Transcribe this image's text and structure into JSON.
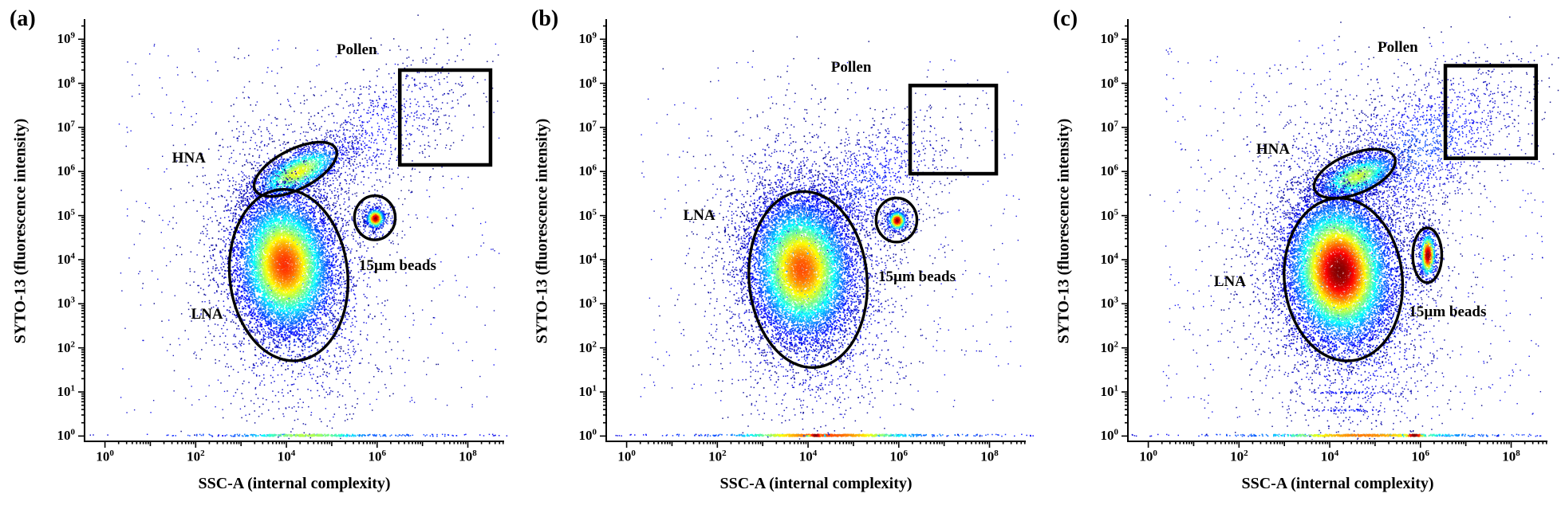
{
  "figure": {
    "background": "#ffffff",
    "panel_count": 3,
    "colormap": "jet",
    "axis_color": "#000000",
    "gate_color": "#000000"
  },
  "axes": {
    "x_label": "SSC-A (internal complexity)",
    "y_label": "SYTO-13 (fluorescence intensity)",
    "tick_base": "10",
    "x_tick_exponents": [
      0,
      2,
      4,
      6,
      8
    ],
    "y_tick_exponents": [
      0,
      1,
      2,
      3,
      4,
      5,
      6,
      7,
      8,
      9
    ],
    "x_range": [
      -0.45,
      8.8
    ],
    "y_range": [
      -0.12,
      9.42
    ],
    "scale": "log10",
    "grid": false
  },
  "chart_data": [
    {
      "panel_label": "(a)",
      "type": "scatter",
      "colormap": "jet",
      "seed": 20,
      "gates": [
        {
          "name": "Pollen",
          "shape": "rect",
          "x0": 6.5,
          "y0": 6.15,
          "x1": 8.5,
          "y1": 8.3,
          "label_x": 5.55,
          "label_y": 8.75
        },
        {
          "name": "HNA",
          "shape": "ellipse",
          "cx": 4.2,
          "cy": 6.05,
          "rx": 1.0,
          "ry": 0.45,
          "rot": 27,
          "label_x": 1.85,
          "label_y": 6.3
        },
        {
          "name": "LNA",
          "shape": "ellipse",
          "cx": 4.05,
          "cy": 3.65,
          "rx": 1.3,
          "ry": 1.95,
          "rot": 6,
          "label_x": 2.25,
          "label_y": 2.75
        },
        {
          "name": "15µm beads",
          "shape": "ellipse",
          "cx": 5.95,
          "cy": 4.95,
          "rx": 0.45,
          "ry": 0.5,
          "rot": 0,
          "label_x": 6.45,
          "label_y": 3.85
        }
      ],
      "clusters": [
        {
          "type": "uniform",
          "x0": 0.3,
          "x1": 8.7,
          "y0": 0.4,
          "y1": 9.0,
          "n": 420,
          "hot": 0.12,
          "size": 1.4
        },
        {
          "type": "gauss",
          "cx": 4.05,
          "cy": 3.8,
          "sx": 0.95,
          "sy": 1.55,
          "rot": 6,
          "n": 2600,
          "hot": 0.3,
          "size": 1.5
        },
        {
          "type": "gauss",
          "cx": 5.9,
          "cy": 6.9,
          "sx": 1.25,
          "sy": 0.6,
          "rot": 38,
          "n": 850,
          "hot": 0.13,
          "size": 1.5
        },
        {
          "type": "line",
          "cx": 4.5,
          "sx": 2.2,
          "n": 170,
          "hot": 0.25,
          "size": 1.5
        },
        {
          "type": "gauss",
          "cx": 4.25,
          "cy": 6.0,
          "sx": 0.55,
          "sy": 0.22,
          "rot": 27,
          "n": 2100,
          "hot": 0.62,
          "size": 1.5
        },
        {
          "type": "gauss",
          "cx": 3.95,
          "cy": 3.9,
          "sx": 0.52,
          "sy": 0.78,
          "rot": 6,
          "n": 8800,
          "hot": 0.83,
          "size": 1.7
        },
        {
          "type": "line",
          "cx": 4.4,
          "sx": 0.75,
          "n": 260,
          "hot": 0.55,
          "size": 1.7
        },
        {
          "type": "gauss",
          "cx": 5.95,
          "cy": 4.95,
          "sx": 0.24,
          "sy": 0.26,
          "rot": 0,
          "n": 220,
          "hot": 0.3,
          "size": 1.4
        },
        {
          "type": "gauss",
          "cx": 5.95,
          "cy": 4.95,
          "sx": 0.1,
          "sy": 0.11,
          "rot": 0,
          "n": 520,
          "hot": 1.0,
          "size": 1.7
        }
      ]
    },
    {
      "panel_label": "(b)",
      "type": "scatter",
      "colormap": "jet",
      "seed": 21,
      "gates": [
        {
          "name": "Pollen",
          "shape": "rect",
          "x0": 6.25,
          "y0": 5.95,
          "x1": 8.15,
          "y1": 7.95,
          "label_x": 4.95,
          "label_y": 8.35
        },
        {
          "name": "LNA",
          "shape": "ellipse",
          "cx": 4.0,
          "cy": 3.55,
          "rx": 1.3,
          "ry": 2.0,
          "rot": 5,
          "label_x": 1.6,
          "label_y": 5.0
        },
        {
          "name": "15µm beads",
          "shape": "ellipse",
          "cx": 5.95,
          "cy": 4.9,
          "rx": 0.45,
          "ry": 0.5,
          "rot": 0,
          "label_x": 6.4,
          "label_y": 3.6
        }
      ],
      "clusters": [
        {
          "type": "uniform",
          "x0": 0.3,
          "x1": 8.7,
          "y0": 0.4,
          "y1": 8.6,
          "n": 380,
          "hot": 0.12,
          "size": 1.4
        },
        {
          "type": "gauss",
          "cx": 3.95,
          "cy": 3.7,
          "sx": 1.0,
          "sy": 1.6,
          "rot": 5,
          "n": 2900,
          "hot": 0.28,
          "size": 1.5
        },
        {
          "type": "gauss",
          "cx": 5.2,
          "cy": 5.7,
          "sx": 1.15,
          "sy": 0.55,
          "rot": 36,
          "n": 1100,
          "hot": 0.16,
          "size": 1.5
        },
        {
          "type": "line",
          "cx": 4.6,
          "sx": 2.3,
          "n": 280,
          "hot": 0.3,
          "size": 1.5
        },
        {
          "type": "gauss",
          "cx": 3.85,
          "cy": 3.8,
          "sx": 0.55,
          "sy": 0.8,
          "rot": 5,
          "n": 9000,
          "hot": 0.8,
          "size": 1.7
        },
        {
          "type": "line",
          "cx": 4.35,
          "sx": 0.95,
          "n": 620,
          "hot": 0.8,
          "size": 1.7
        },
        {
          "type": "line",
          "cx": 4.15,
          "sx": 0.1,
          "n": 60,
          "hot": 1.0,
          "size": 1.8
        },
        {
          "type": "gauss",
          "cx": 5.95,
          "cy": 4.9,
          "sx": 0.24,
          "sy": 0.26,
          "rot": 0,
          "n": 200,
          "hot": 0.3,
          "size": 1.4
        },
        {
          "type": "gauss",
          "cx": 5.95,
          "cy": 4.9,
          "sx": 0.1,
          "sy": 0.11,
          "rot": 0,
          "n": 500,
          "hot": 1.0,
          "size": 1.7
        }
      ]
    },
    {
      "panel_label": "(c)",
      "type": "scatter",
      "colormap": "jet",
      "seed": 22,
      "gates": [
        {
          "name": "Pollen",
          "shape": "rect",
          "x0": 6.55,
          "y0": 6.3,
          "x1": 8.55,
          "y1": 8.4,
          "label_x": 5.5,
          "label_y": 8.8
        },
        {
          "name": "HNA",
          "shape": "ellipse",
          "cx": 4.55,
          "cy": 5.95,
          "rx": 0.95,
          "ry": 0.45,
          "rot": 22,
          "label_x": 2.75,
          "label_y": 6.5
        },
        {
          "name": "LNA",
          "shape": "ellipse",
          "cx": 4.3,
          "cy": 3.55,
          "rx": 1.3,
          "ry": 1.85,
          "rot": 6,
          "label_x": 1.8,
          "label_y": 3.5
        },
        {
          "name": "15µm beads",
          "shape": "ellipse",
          "cx": 6.15,
          "cy": 4.1,
          "rx": 0.32,
          "ry": 0.62,
          "rot": 0,
          "label_x": 6.6,
          "label_y": 2.8
        }
      ],
      "clusters": [
        {
          "type": "uniform",
          "x0": 0.3,
          "x1": 8.7,
          "y0": 0.4,
          "y1": 9.0,
          "n": 620,
          "hot": 0.13,
          "size": 1.4
        },
        {
          "type": "gauss",
          "cx": 4.3,
          "cy": 3.7,
          "sx": 1.05,
          "sy": 1.65,
          "rot": 6,
          "n": 3400,
          "hot": 0.3,
          "size": 1.5
        },
        {
          "type": "gauss",
          "cx": 5.9,
          "cy": 6.5,
          "sx": 1.35,
          "sy": 0.68,
          "rot": 36,
          "n": 1700,
          "hot": 0.2,
          "size": 1.5
        },
        {
          "type": "line",
          "cx": 4.8,
          "sx": 2.3,
          "n": 260,
          "hot": 0.3,
          "size": 1.5
        },
        {
          "type": "line",
          "v": 1.0,
          "cx": 4.5,
          "sx": 0.55,
          "n": 70,
          "hot": 0.15,
          "size": 1.5
        },
        {
          "type": "line",
          "v": 0.6,
          "cx": 4.4,
          "sx": 0.5,
          "n": 50,
          "hot": 0.15,
          "size": 1.5
        },
        {
          "type": "gauss",
          "cx": 4.6,
          "cy": 5.9,
          "sx": 0.5,
          "sy": 0.22,
          "rot": 22,
          "n": 2000,
          "hot": 0.58,
          "size": 1.5
        },
        {
          "type": "gauss",
          "cx": 4.2,
          "cy": 3.75,
          "sx": 0.55,
          "sy": 0.8,
          "rot": 6,
          "n": 11000,
          "hot": 1.0,
          "size": 1.7
        },
        {
          "type": "line",
          "cx": 4.7,
          "sx": 1.05,
          "n": 430,
          "hot": 0.75,
          "size": 1.7
        },
        {
          "type": "line",
          "cx": 5.85,
          "sx": 0.12,
          "n": 70,
          "hot": 1.0,
          "size": 1.8
        },
        {
          "type": "gauss",
          "cx": 6.15,
          "cy": 4.1,
          "sx": 0.18,
          "sy": 0.42,
          "rot": 0,
          "n": 220,
          "hot": 0.3,
          "size": 1.4
        },
        {
          "type": "gauss",
          "cx": 6.15,
          "cy": 4.12,
          "sx": 0.09,
          "sy": 0.26,
          "rot": 0,
          "n": 620,
          "hot": 1.0,
          "size": 1.7
        }
      ]
    }
  ]
}
